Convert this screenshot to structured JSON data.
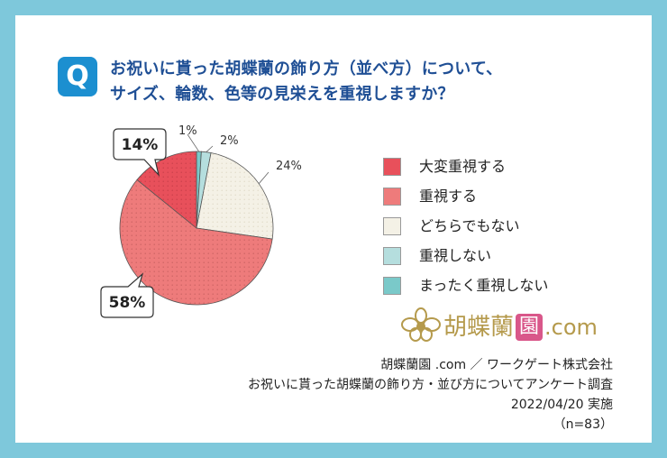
{
  "question": {
    "badge": "Q",
    "line1": "お祝いに貰った胡蝶蘭の飾り方（並べ方）について、",
    "line2": "サイズ、輪数、色等の見栄えを重視しますか？"
  },
  "chart_data": {
    "type": "pie",
    "categories": [
      "大変重視する",
      "重視する",
      "どちらでもない",
      "重視しない",
      "まったく重視しない"
    ],
    "values": [
      14,
      58,
      24,
      2,
      1
    ],
    "value_labels": [
      "14%",
      "58%",
      "24%",
      "2%",
      "1%"
    ],
    "colors": [
      "#e8505b",
      "#ee7b7b",
      "#f4f1e6",
      "#b5dede",
      "#7ac9c9"
    ],
    "legend_position": "right",
    "title": ""
  },
  "brand": {
    "name": "胡蝶蘭",
    "seal": "園",
    "suffix": ".com",
    "colors": {
      "gold": "#b59a4c",
      "seal": "#d9578a"
    }
  },
  "source": {
    "line1": "胡蝶蘭園 .com ／ ワークゲート株式会社",
    "line2": "お祝いに貰った胡蝶蘭の飾り方・並び方についてアンケート調査",
    "line3": "2022/04/20 実施",
    "line4": "（n=83）"
  }
}
